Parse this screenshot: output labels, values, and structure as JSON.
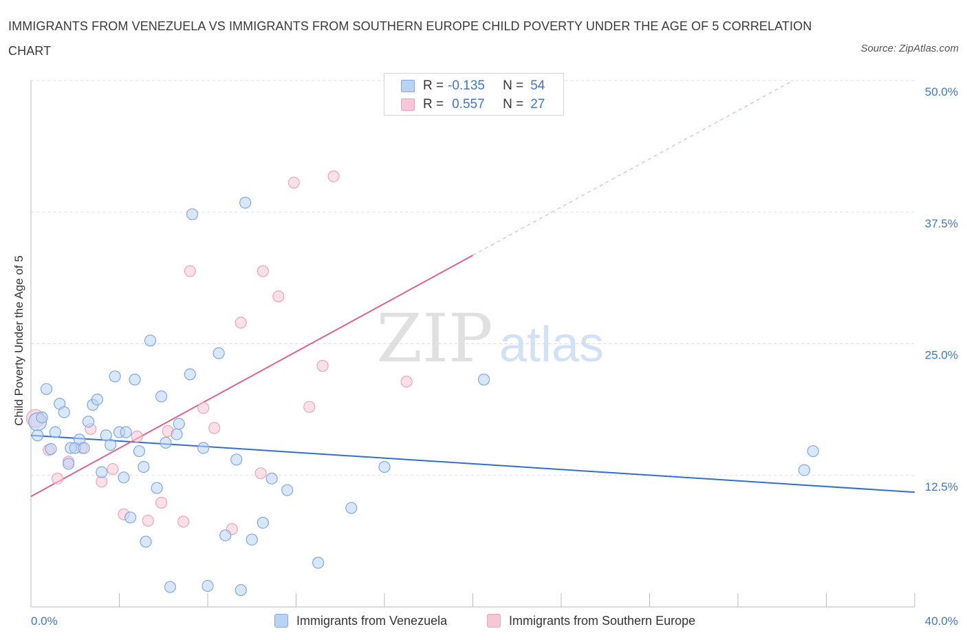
{
  "header": {
    "title": "IMMIGRANTS FROM VENEZUELA VS IMMIGRANTS FROM SOUTHERN EUROPE CHILD POVERTY UNDER THE AGE OF 5 CORRELATION CHART",
    "source": "Source: ZipAtlas.com"
  },
  "watermark": {
    "zip": "ZIP",
    "atlas": "atlas"
  },
  "legend": {
    "rows": [
      {
        "r_label": "R =",
        "r_value": "-0.135",
        "n_label": "N =",
        "n_value": "54"
      },
      {
        "r_label": "R =",
        "r_value": "0.557",
        "n_label": "N =",
        "n_value": "27"
      }
    ]
  },
  "colors": {
    "blue_fill": "#b9d3f5",
    "blue_stroke": "#7fa8e0",
    "blue_line": "#2f6fd0",
    "pink_fill": "#f8c7d6",
    "pink_stroke": "#eea3ba",
    "pink_line": "#e0608a",
    "axis_text": "#3f76c8",
    "grid": "#dddddd"
  },
  "chart_data": {
    "type": "scatter",
    "title": "IMMIGRANTS FROM VENEZUELA VS IMMIGRANTS FROM SOUTHERN EUROPE CHILD POVERTY UNDER THE AGE OF 5 CORRELATION CHART",
    "xlabel": "",
    "ylabel": "Child Poverty Under the Age of 5",
    "xlim": [
      0,
      40
    ],
    "ylim": [
      0,
      50
    ],
    "x_tick_labels": [
      "0.0%",
      "40.0%"
    ],
    "y_ticks": [
      12.5,
      25.0,
      37.5,
      50.0
    ],
    "y_tick_labels": [
      "12.5%",
      "25.0%",
      "37.5%",
      "50.0%"
    ],
    "grid": true,
    "series": [
      {
        "name": "Immigrants from Venezuela",
        "color": "#7fa8e0",
        "R": -0.135,
        "N": 54,
        "trend": {
          "x": [
            0,
            40
          ],
          "y": [
            16.3,
            10.9
          ],
          "solid_to": 40
        },
        "points": [
          [
            0.3,
            17.6
          ],
          [
            0.3,
            16.3
          ],
          [
            0.5,
            18.0
          ],
          [
            0.7,
            20.7
          ],
          [
            0.9,
            15.0
          ],
          [
            1.1,
            16.6
          ],
          [
            1.3,
            19.3
          ],
          [
            1.5,
            18.5
          ],
          [
            1.7,
            13.6
          ],
          [
            1.8,
            15.1
          ],
          [
            2.0,
            15.1
          ],
          [
            2.2,
            15.9
          ],
          [
            2.4,
            15.1
          ],
          [
            2.6,
            17.6
          ],
          [
            2.8,
            19.2
          ],
          [
            3.0,
            19.7
          ],
          [
            3.2,
            12.8
          ],
          [
            3.4,
            16.3
          ],
          [
            3.6,
            15.4
          ],
          [
            3.8,
            21.9
          ],
          [
            4.0,
            16.6
          ],
          [
            4.2,
            12.3
          ],
          [
            4.3,
            16.6
          ],
          [
            4.5,
            8.5
          ],
          [
            4.7,
            21.6
          ],
          [
            4.9,
            14.8
          ],
          [
            5.1,
            13.3
          ],
          [
            5.2,
            6.2
          ],
          [
            5.4,
            25.3
          ],
          [
            5.7,
            11.3
          ],
          [
            5.9,
            20.0
          ],
          [
            6.1,
            15.6
          ],
          [
            6.3,
            1.9
          ],
          [
            6.6,
            16.4
          ],
          [
            6.7,
            17.4
          ],
          [
            7.2,
            22.1
          ],
          [
            7.3,
            37.3
          ],
          [
            7.8,
            15.1
          ],
          [
            8.0,
            2.0
          ],
          [
            8.5,
            24.1
          ],
          [
            8.8,
            6.8
          ],
          [
            9.3,
            14.0
          ],
          [
            9.5,
            1.6
          ],
          [
            9.7,
            38.4
          ],
          [
            10.0,
            6.4
          ],
          [
            10.5,
            8.0
          ],
          [
            10.9,
            12.2
          ],
          [
            11.6,
            11.1
          ],
          [
            13.0,
            4.2
          ],
          [
            14.5,
            9.4
          ],
          [
            16.0,
            13.3
          ],
          [
            20.5,
            21.6
          ],
          [
            35.0,
            13.0
          ],
          [
            35.4,
            14.8
          ]
        ]
      },
      {
        "name": "Immigrants from Southern Europe",
        "color": "#eea3ba",
        "R": 0.557,
        "N": 27,
        "trend": {
          "x": [
            0,
            34.5
          ],
          "y": [
            10.5,
            50.0
          ],
          "solid_to": 20
        },
        "points": [
          [
            0.2,
            17.9
          ],
          [
            0.8,
            14.9
          ],
          [
            1.2,
            12.2
          ],
          [
            1.7,
            13.8
          ],
          [
            2.3,
            15.1
          ],
          [
            2.7,
            16.9
          ],
          [
            3.2,
            11.9
          ],
          [
            3.7,
            13.1
          ],
          [
            4.2,
            8.8
          ],
          [
            4.8,
            16.2
          ],
          [
            5.3,
            8.2
          ],
          [
            5.9,
            9.9
          ],
          [
            6.2,
            16.7
          ],
          [
            6.9,
            8.1
          ],
          [
            7.2,
            31.9
          ],
          [
            7.8,
            18.9
          ],
          [
            8.3,
            17.0
          ],
          [
            9.1,
            7.4
          ],
          [
            9.5,
            27.0
          ],
          [
            10.4,
            12.7
          ],
          [
            10.5,
            31.9
          ],
          [
            11.2,
            29.5
          ],
          [
            11.9,
            40.3
          ],
          [
            12.6,
            19.0
          ],
          [
            13.2,
            22.9
          ],
          [
            13.7,
            40.9
          ],
          [
            17.0,
            21.4
          ]
        ]
      }
    ]
  }
}
